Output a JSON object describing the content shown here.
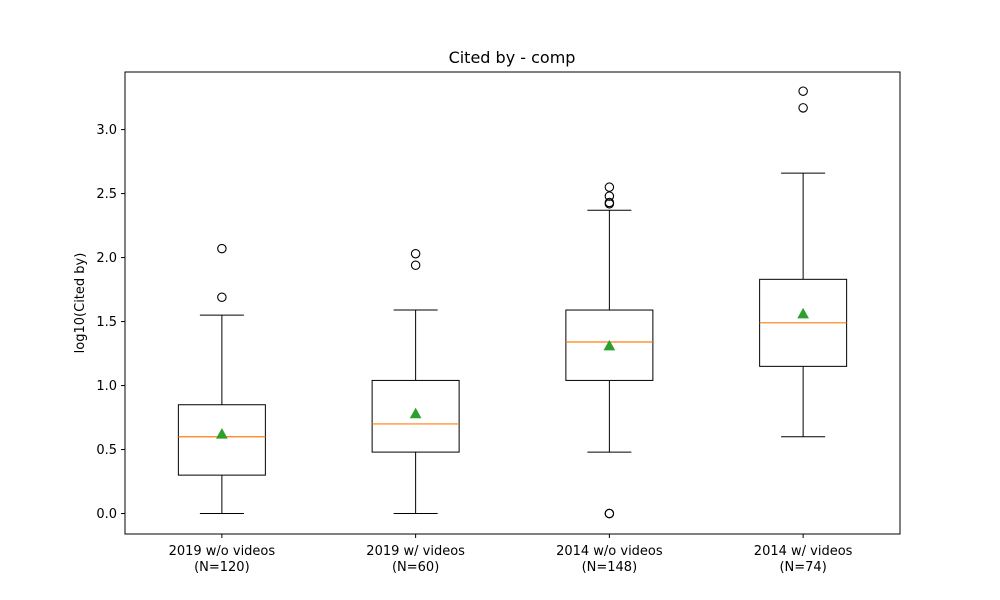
{
  "chart_data": {
    "type": "box",
    "title": "Cited by - comp",
    "xlabel": "",
    "ylabel": "log10(Cited by)",
    "ylim": [
      -0.16,
      3.45
    ],
    "yticks": [
      "0.0",
      "0.5",
      "1.0",
      "1.5",
      "2.0",
      "2.5",
      "3.0"
    ],
    "grid": false,
    "colors": {
      "box": "#000000",
      "median": "#ff7f0e",
      "mean": "#2ca02c",
      "flier": "#000000"
    },
    "categories": [
      {
        "label": "2019 w/o videos",
        "n": "(N=120)"
      },
      {
        "label": "2019 w/ videos",
        "n": "(N=60)"
      },
      {
        "label": "2014 w/o videos",
        "n": "(N=148)"
      },
      {
        "label": "2014 w/ videos",
        "n": "(N=74)"
      }
    ],
    "boxes": [
      {
        "whisker_low": 0.0,
        "q1": 0.3,
        "median": 0.6,
        "q3": 0.85,
        "whisker_high": 1.55,
        "mean": 0.62,
        "fliers": [
          1.69,
          2.07
        ]
      },
      {
        "whisker_low": 0.0,
        "q1": 0.48,
        "median": 0.7,
        "q3": 1.04,
        "whisker_high": 1.59,
        "mean": 0.78,
        "fliers": [
          1.94,
          2.03
        ]
      },
      {
        "whisker_low": 0.48,
        "q1": 1.04,
        "median": 1.34,
        "q3": 1.59,
        "whisker_high": 2.37,
        "mean": 1.31,
        "fliers": [
          0.0,
          0.0,
          2.42,
          2.43,
          2.48,
          2.55
        ]
      },
      {
        "whisker_low": 0.6,
        "q1": 1.15,
        "median": 1.49,
        "q3": 1.83,
        "whisker_high": 2.66,
        "mean": 1.56,
        "fliers": [
          3.17,
          3.3
        ]
      }
    ]
  }
}
